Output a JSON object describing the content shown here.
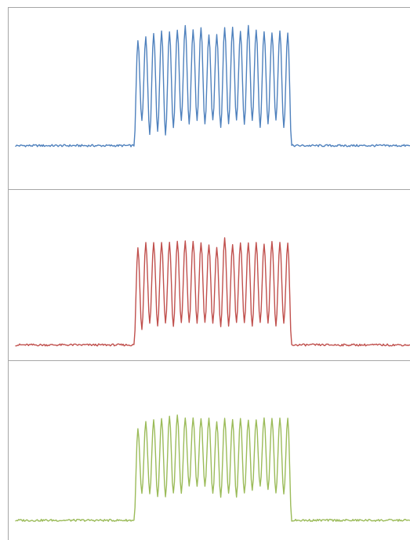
{
  "chart_data": [
    {
      "type": "line",
      "grid": false,
      "legend": "none",
      "ylim": [
        0,
        1
      ],
      "series": [
        {
          "color": "#4f81bd",
          "baseline": 0.24,
          "x": [
            0,
            0.3,
            0.31,
            0.32,
            0.33,
            0.34,
            0.35,
            0.36,
            0.37,
            0.38,
            0.39,
            0.4,
            0.41,
            0.42,
            0.43,
            0.44,
            0.45,
            0.46,
            0.47,
            0.48,
            0.49,
            0.5,
            0.51,
            0.52,
            0.53,
            0.54,
            0.55,
            0.56,
            0.57,
            0.58,
            0.59,
            0.6,
            0.61,
            0.62,
            0.63,
            0.64,
            0.65,
            0.66,
            0.67,
            0.68,
            0.69,
            0.7,
            0.71,
            0.72,
            0.73,
            0.74,
            1.0
          ],
          "y": [
            0.24,
            0.24,
            0.82,
            0.38,
            0.84,
            0.3,
            0.86,
            0.32,
            0.87,
            0.3,
            0.87,
            0.34,
            0.88,
            0.38,
            0.9,
            0.36,
            0.88,
            0.38,
            0.89,
            0.36,
            0.85,
            0.38,
            0.85,
            0.34,
            0.89,
            0.36,
            0.89,
            0.38,
            0.87,
            0.36,
            0.9,
            0.38,
            0.88,
            0.34,
            0.87,
            0.36,
            0.86,
            0.38,
            0.87,
            0.34,
            0.86,
            0.24,
            0.24,
            0.24,
            0.24,
            0.24,
            0.24
          ]
        }
      ]
    },
    {
      "type": "line",
      "grid": false,
      "legend": "none",
      "ylim": [
        0,
        1
      ],
      "series": [
        {
          "color": "#c0504d",
          "baseline": 0.09,
          "x": [
            0,
            0.3,
            0.31,
            0.32,
            0.33,
            0.34,
            0.35,
            0.36,
            0.37,
            0.38,
            0.39,
            0.4,
            0.41,
            0.42,
            0.43,
            0.44,
            0.45,
            0.46,
            0.47,
            0.48,
            0.49,
            0.5,
            0.51,
            0.52,
            0.53,
            0.54,
            0.55,
            0.56,
            0.57,
            0.58,
            0.59,
            0.6,
            0.61,
            0.62,
            0.63,
            0.64,
            0.65,
            0.66,
            0.67,
            0.68,
            0.69,
            0.7,
            0.71,
            0.72,
            0.73,
            0.74,
            1.0
          ],
          "y": [
            0.09,
            0.09,
            0.66,
            0.18,
            0.69,
            0.22,
            0.69,
            0.2,
            0.69,
            0.22,
            0.69,
            0.2,
            0.7,
            0.22,
            0.7,
            0.22,
            0.7,
            0.22,
            0.69,
            0.22,
            0.68,
            0.22,
            0.66,
            0.2,
            0.72,
            0.2,
            0.68,
            0.22,
            0.69,
            0.22,
            0.69,
            0.2,
            0.69,
            0.22,
            0.68,
            0.22,
            0.7,
            0.2,
            0.69,
            0.22,
            0.69,
            0.09,
            0.09,
            0.09,
            0.09,
            0.09,
            0.09
          ]
        }
      ]
    },
    {
      "type": "line",
      "grid": false,
      "legend": "none",
      "ylim": [
        0,
        1
      ],
      "series": [
        {
          "color": "#9bbb59",
          "baseline": 0.11,
          "x": [
            0,
            0.3,
            0.31,
            0.32,
            0.33,
            0.34,
            0.35,
            0.36,
            0.37,
            0.38,
            0.39,
            0.4,
            0.41,
            0.42,
            0.43,
            0.44,
            0.45,
            0.46,
            0.47,
            0.48,
            0.49,
            0.5,
            0.51,
            0.52,
            0.53,
            0.54,
            0.55,
            0.56,
            0.57,
            0.58,
            0.59,
            0.6,
            0.61,
            0.62,
            0.63,
            0.64,
            0.65,
            0.66,
            0.67,
            0.68,
            0.69,
            0.7,
            0.71,
            0.72,
            0.73,
            0.74,
            1.0
          ],
          "y": [
            0.11,
            0.11,
            0.62,
            0.26,
            0.66,
            0.26,
            0.67,
            0.24,
            0.68,
            0.24,
            0.69,
            0.26,
            0.7,
            0.26,
            0.68,
            0.3,
            0.68,
            0.3,
            0.68,
            0.3,
            0.68,
            0.26,
            0.66,
            0.24,
            0.68,
            0.26,
            0.67,
            0.24,
            0.68,
            0.26,
            0.67,
            0.28,
            0.67,
            0.3,
            0.68,
            0.28,
            0.68,
            0.26,
            0.68,
            0.26,
            0.68,
            0.11,
            0.11,
            0.11,
            0.11,
            0.11,
            0.11
          ]
        }
      ]
    }
  ]
}
